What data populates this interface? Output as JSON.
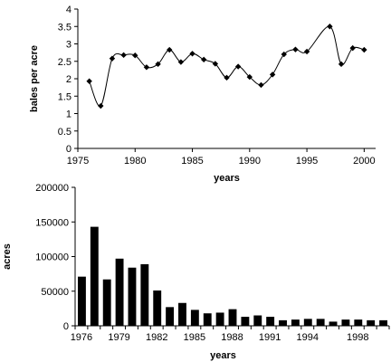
{
  "chart_data": [
    {
      "type": "line",
      "title": "",
      "xlabel": "years",
      "ylabel": "bales per acre",
      "xlim": [
        1975,
        2001
      ],
      "ylim": [
        0,
        4
      ],
      "xticks": [
        1975,
        1980,
        1985,
        1990,
        1995,
        2000
      ],
      "yticks": [
        "0",
        "0.5",
        "1",
        "1.5",
        "2",
        "2.5",
        "3",
        "3.5",
        "4"
      ],
      "grid": false,
      "x": [
        1976,
        1977,
        1978,
        1979,
        1980,
        1981,
        1982,
        1983,
        1984,
        1985,
        1986,
        1987,
        1988,
        1989,
        1990,
        1991,
        1992,
        1993,
        1994,
        1995,
        1996,
        1997,
        1998,
        1999,
        2000
      ],
      "series": [
        {
          "values": [
            1.93,
            1.22,
            2.58,
            2.68,
            2.67,
            2.33,
            2.42,
            2.83,
            2.48,
            2.72,
            2.55,
            2.43,
            2.03,
            2.35,
            2.05,
            1.82,
            2.12,
            2.7,
            2.84,
            2.78,
            null,
            3.5,
            2.42,
            2.88,
            2.83
          ]
        }
      ]
    },
    {
      "type": "bar",
      "title": "",
      "xlabel": "years",
      "ylabel": "acres",
      "ylim": [
        0,
        200000
      ],
      "yticks": [
        "0",
        "50000",
        "100000",
        "150000",
        "200000"
      ],
      "xtick_labels": [
        "1976",
        "1979",
        "1982",
        "1985",
        "1988",
        "1991",
        "1994",
        "1998"
      ],
      "grid": false,
      "categories": [
        "1976",
        "1977",
        "1978",
        "1979",
        "1980",
        "1981",
        "1982",
        "1983",
        "1984",
        "1985",
        "1986",
        "1987",
        "1988",
        "1989",
        "1990",
        "1991",
        "1992",
        "1993",
        "1994",
        "1995",
        "1996",
        "1997",
        "1998",
        "1999",
        "2000"
      ],
      "series": [
        {
          "values": [
            71000,
            143000,
            67000,
            97000,
            84000,
            89000,
            51000,
            27000,
            33000,
            23000,
            18000,
            19000,
            24000,
            13000,
            15000,
            13000,
            8000,
            9000,
            10000,
            10000,
            6000,
            9000,
            9000,
            8000,
            8000
          ]
        }
      ]
    }
  ]
}
